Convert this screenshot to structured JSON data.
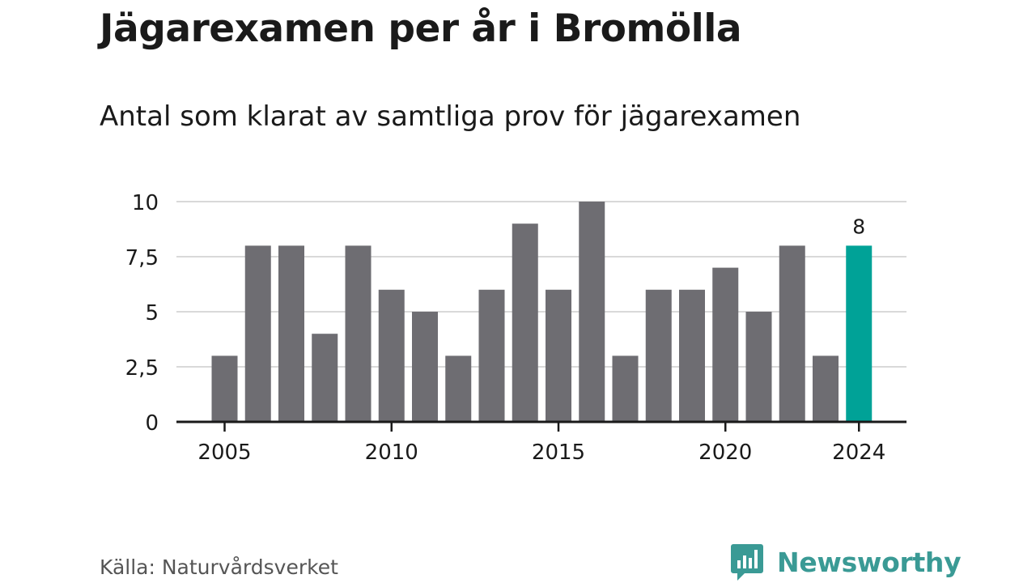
{
  "header": {
    "title": "Jägarexamen per år i Bromölla",
    "subtitle": "Antal som klarat av samtliga prov för jägarexamen"
  },
  "footer": {
    "source": "Källa: Naturvårdsverket",
    "brand_name": "Newsworthy",
    "brand_icon": "newsworthy-logo-icon"
  },
  "colors": {
    "bar": "#6e6d72",
    "highlight": "#00a297",
    "grid": "#d9d9d9",
    "axis": "#1a1a1a",
    "brand": "#3a9a95"
  },
  "chart_data": {
    "type": "bar",
    "categories": [
      "2005",
      "2006",
      "2007",
      "2008",
      "2009",
      "2010",
      "2011",
      "2012",
      "2013",
      "2014",
      "2015",
      "2016",
      "2017",
      "2018",
      "2019",
      "2020",
      "2021",
      "2022",
      "2023",
      "2024"
    ],
    "values": [
      3,
      8,
      8,
      4,
      8,
      6,
      5,
      3,
      6,
      9,
      6,
      10,
      3,
      6,
      6,
      7,
      5,
      8,
      3,
      8
    ],
    "x_tick_labels": [
      "2005",
      "2010",
      "2015",
      "2020",
      "2024"
    ],
    "y_ticks": [
      0,
      2.5,
      5,
      7.5,
      10
    ],
    "y_tick_labels": [
      "0",
      "2,5",
      "5",
      "7,5",
      "10"
    ],
    "ylim": [
      0,
      10
    ],
    "grid": true,
    "highlight_category": "2024",
    "highlight_label": "8"
  }
}
